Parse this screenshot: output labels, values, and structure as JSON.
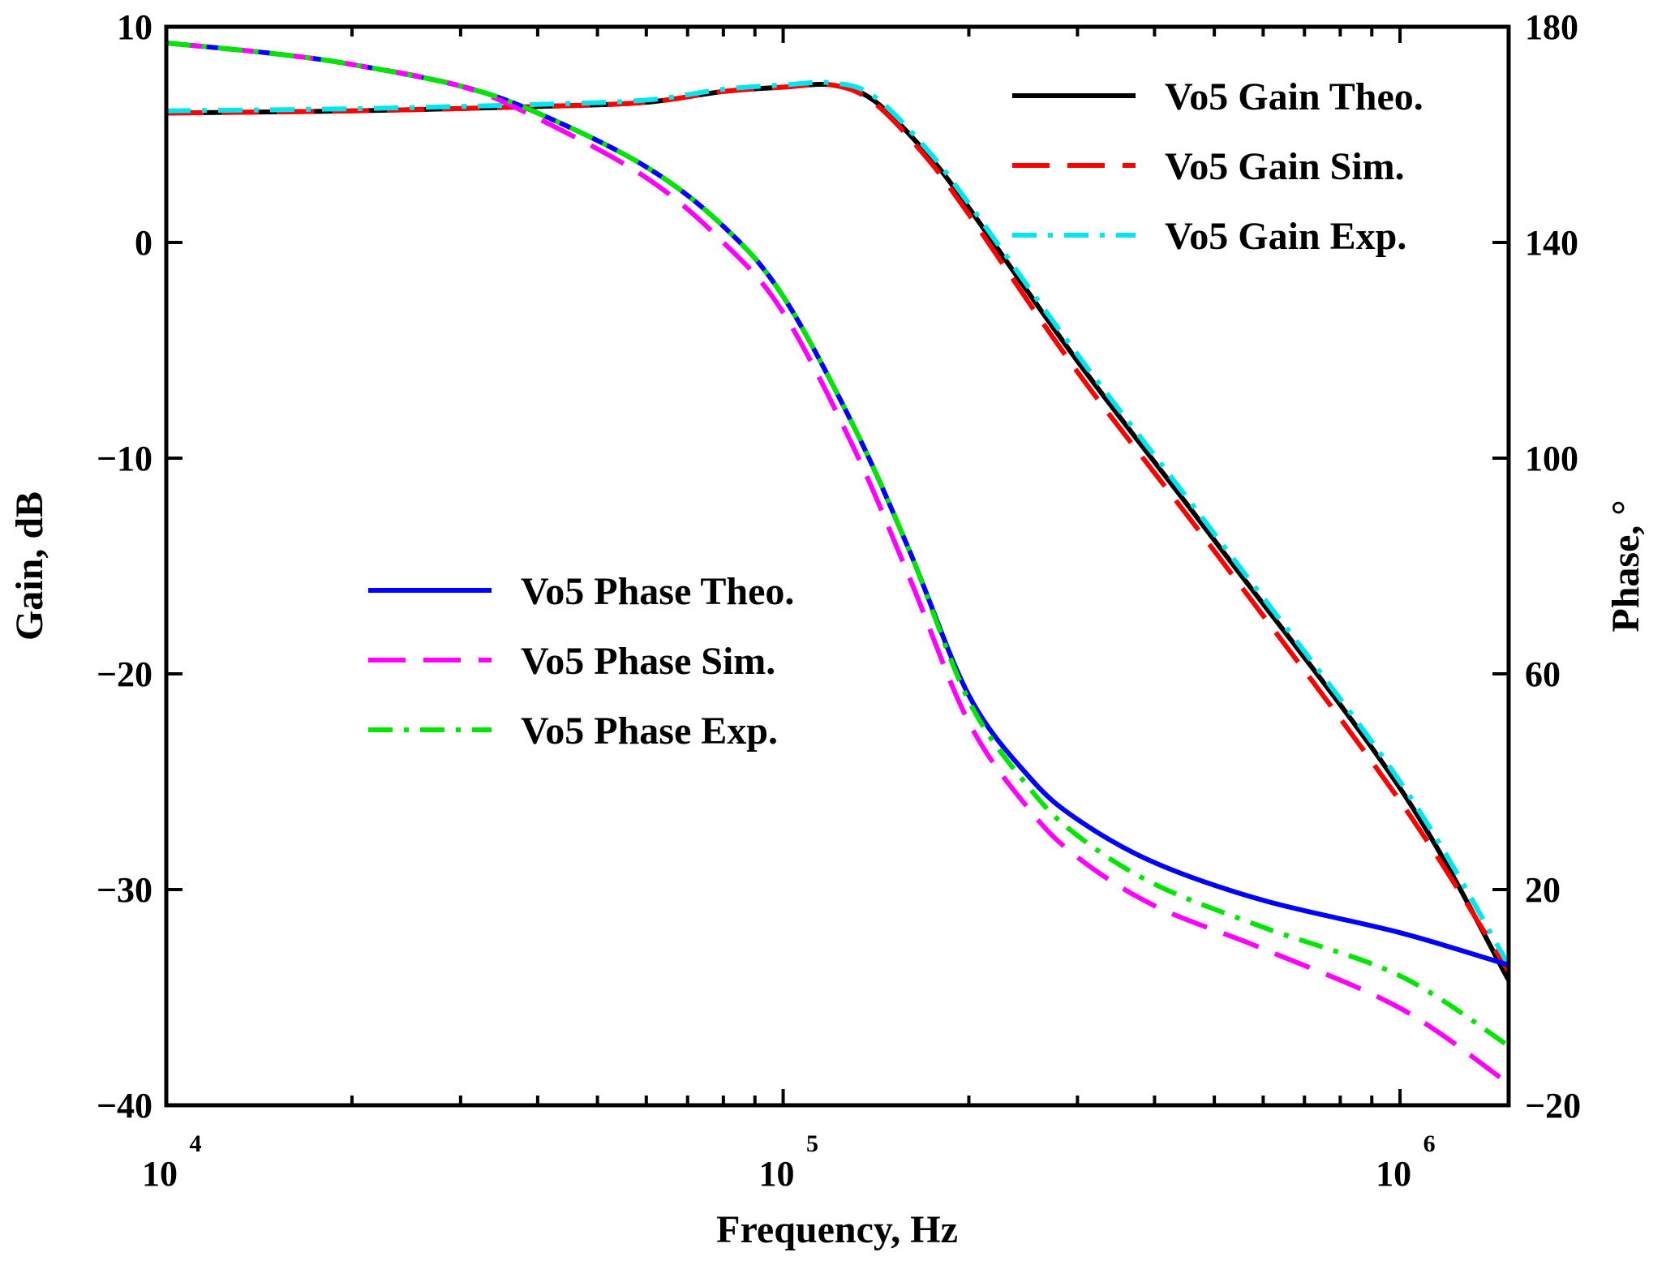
{
  "chart_data": {
    "type": "line",
    "xlabel": "Frequency, Hz",
    "ylabel": "Gain, dB",
    "y2label": "Phase, °",
    "xscale": "log",
    "xlim": [
      10000,
      1500000
    ],
    "ylim": [
      -40,
      10
    ],
    "y2lim": [
      -20,
      180
    ],
    "grid": false,
    "xticks": [
      {
        "value": 10000,
        "base": "10",
        "exp": "4"
      },
      {
        "value": 100000,
        "base": "10",
        "exp": "5"
      },
      {
        "value": 1000000,
        "base": "10",
        "exp": "6"
      }
    ],
    "yticks": [
      {
        "value": 10,
        "label": "10"
      },
      {
        "value": 0,
        "label": "0"
      },
      {
        "value": -10,
        "label": "−10"
      },
      {
        "value": -20,
        "label": "−20"
      },
      {
        "value": -30,
        "label": "−30"
      },
      {
        "value": -40,
        "label": "−40"
      }
    ],
    "y2ticks": [
      {
        "value": 180,
        "label": "180"
      },
      {
        "value": 140,
        "label": "140"
      },
      {
        "value": 100,
        "label": "100"
      },
      {
        "value": 60,
        "label": "60"
      },
      {
        "value": 20,
        "label": "20"
      },
      {
        "value": -20,
        "label": "−20"
      }
    ],
    "legends": [
      {
        "position": "top-right",
        "entries": [
          0,
          1,
          2
        ]
      },
      {
        "position": "center-left",
        "entries": [
          3,
          4,
          5
        ]
      }
    ],
    "series": [
      {
        "name": "Vo5 Gain Theo.",
        "axis": "left",
        "color": "#000000",
        "style": "solid",
        "x": [
          10000,
          20000,
          40000,
          60000,
          80000,
          100000,
          120000,
          140000,
          170000,
          200000,
          300000,
          500000,
          1000000,
          1500000
        ],
        "y": [
          6.0,
          6.1,
          6.3,
          6.5,
          7.0,
          7.2,
          7.3,
          6.6,
          4.2,
          1.6,
          -5.5,
          -13.8,
          -25.3,
          -34.2
        ]
      },
      {
        "name": "Vo5 Gain Sim.",
        "axis": "left",
        "color": "#ff0000",
        "style": "dashed",
        "x": [
          10000,
          20000,
          40000,
          60000,
          80000,
          100000,
          120000,
          140000,
          170000,
          200000,
          300000,
          500000,
          1000000,
          1500000
        ],
        "y": [
          6.0,
          6.1,
          6.3,
          6.5,
          7.0,
          7.2,
          7.3,
          6.5,
          4.0,
          1.3,
          -6.0,
          -14.3,
          -25.9,
          -33.8
        ]
      },
      {
        "name": "Vo5 Gain Exp.",
        "axis": "left",
        "color": "#00e5ee",
        "style": "dashdot",
        "x": [
          10000,
          20000,
          40000,
          60000,
          80000,
          100000,
          120000,
          140000,
          170000,
          200000,
          300000,
          500000,
          1000000,
          1500000
        ],
        "y": [
          6.1,
          6.2,
          6.4,
          6.6,
          7.1,
          7.3,
          7.4,
          6.8,
          4.4,
          1.8,
          -5.2,
          -13.5,
          -25.0,
          -33.5
        ]
      },
      {
        "name": "Vo5 Phase Theo.",
        "axis": "right",
        "color": "#0000ff",
        "style": "solid",
        "x": [
          10000,
          15000,
          20000,
          30000,
          40000,
          60000,
          80000,
          100000,
          130000,
          160000,
          200000,
          250000,
          300000,
          400000,
          600000,
          1000000,
          1500000
        ],
        "y": [
          177,
          175,
          173,
          169,
          164,
          154,
          143,
          130,
          106,
          83,
          56,
          41,
          33,
          25,
          18,
          12,
          6
        ]
      },
      {
        "name": "Vo5 Phase Sim.",
        "axis": "right",
        "color": "#ff00ff",
        "style": "dashed",
        "x": [
          10000,
          15000,
          20000,
          30000,
          40000,
          60000,
          80000,
          100000,
          130000,
          160000,
          200000,
          250000,
          300000,
          400000,
          600000,
          1000000,
          1500000
        ],
        "y": [
          177,
          175,
          173,
          169,
          163,
          152,
          140,
          127,
          102,
          78,
          51,
          35,
          26,
          17,
          9,
          -2,
          -16
        ]
      },
      {
        "name": "Vo5 Phase Exp.",
        "axis": "right",
        "color": "#00e600",
        "style": "dashdot",
        "x": [
          10000,
          15000,
          20000,
          30000,
          40000,
          60000,
          80000,
          100000,
          130000,
          160000,
          200000,
          250000,
          300000,
          400000,
          600000,
          1000000,
          1500000
        ],
        "y": [
          177,
          175,
          173,
          169,
          164,
          154,
          143,
          130,
          106,
          83,
          55,
          39,
          30,
          21,
          13,
          4,
          -9
        ]
      }
    ]
  }
}
